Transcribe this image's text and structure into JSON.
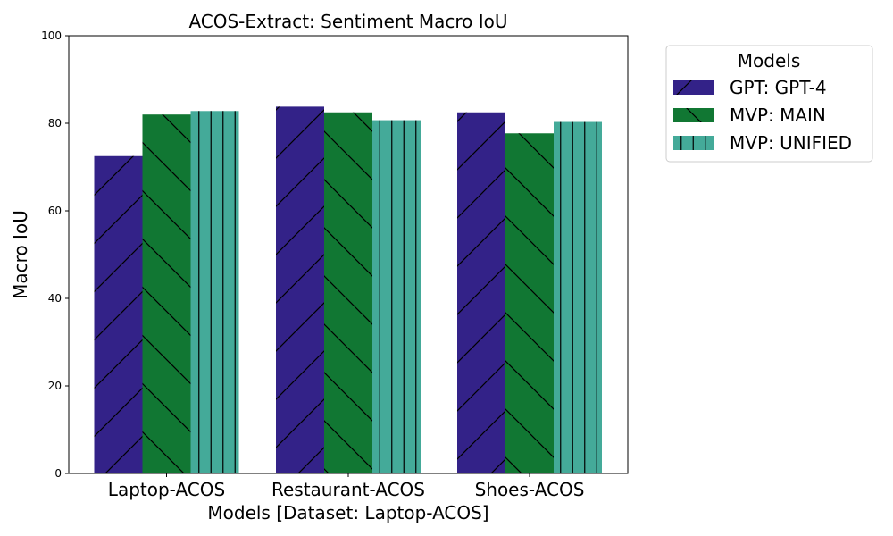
{
  "chart_data": {
    "type": "bar",
    "title": "ACOS-Extract: Sentiment Macro IoU",
    "xlabel": "Models [Dataset: Laptop-ACOS]",
    "ylabel": "Macro IoU",
    "ylim": [
      0,
      100
    ],
    "yticks": [
      0,
      20,
      40,
      60,
      80,
      100
    ],
    "categories": [
      "Laptop-ACOS",
      "Restaurant-ACOS",
      "Shoes-ACOS"
    ],
    "series": [
      {
        "name": "GPT: GPT-4",
        "values": [
          72.5,
          83.8,
          82.5
        ],
        "color": "#332288",
        "hatch": "forward-diagonal"
      },
      {
        "name": "MVP: MAIN",
        "values": [
          82.0,
          82.5,
          77.7
        ],
        "color": "#117733",
        "hatch": "back-diagonal"
      },
      {
        "name": "MVP: UNIFIED",
        "values": [
          82.8,
          80.7,
          80.3
        ],
        "color": "#44AA99",
        "hatch": "vertical"
      }
    ],
    "legend": {
      "title": "Models",
      "placement": "outside-right"
    },
    "grid": false
  }
}
